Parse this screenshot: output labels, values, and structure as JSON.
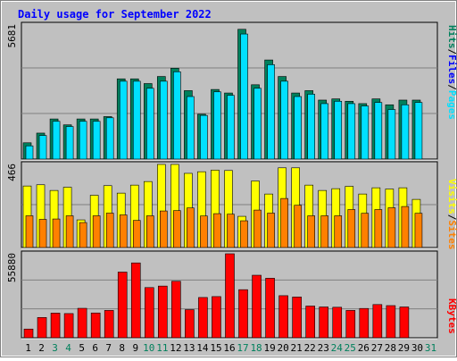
{
  "chart_data": [
    {
      "type": "bar",
      "panel": "hits-files-pages",
      "title": "Daily usage for September 2022",
      "ymax_label": "5681",
      "ylim": [
        0,
        5681
      ],
      "categories": [
        "1",
        "2",
        "3",
        "4",
        "5",
        "6",
        "7",
        "8",
        "9",
        "10",
        "11",
        "12",
        "13",
        "14",
        "15",
        "16",
        "17",
        "18",
        "19",
        "20",
        "21",
        "22",
        "23",
        "24",
        "25",
        "26",
        "27",
        "28",
        "29",
        "30",
        "31"
      ],
      "weekend_days": [
        "3",
        "4",
        "10",
        "11",
        "17",
        "18",
        "24",
        "25",
        "31"
      ],
      "grid": true,
      "legend": "right side, vertical",
      "series": [
        {
          "name": "Hits",
          "color": "#00805c",
          "values": [
            690,
            1100,
            1700,
            1450,
            1700,
            1700,
            1800,
            3400,
            3400,
            3200,
            3500,
            3850,
            2900,
            1900,
            2950,
            2800,
            5500,
            3150,
            4200,
            3500,
            2800,
            2900,
            2500,
            2550,
            2450,
            2350,
            2550,
            2300,
            2500,
            2500,
            0
          ]
        },
        {
          "name": "Files",
          "color": "#0000ff",
          "values": [
            0,
            0,
            0,
            0,
            0,
            0,
            0,
            0,
            0,
            0,
            0,
            0,
            0,
            0,
            0,
            0,
            0,
            0,
            0,
            0,
            0,
            0,
            0,
            0,
            0,
            0,
            0,
            0,
            0,
            0,
            0
          ]
        },
        {
          "name": "Pages",
          "color": "#00e0ff",
          "values": [
            560,
            1000,
            1600,
            1380,
            1600,
            1600,
            1750,
            3300,
            3300,
            3000,
            3300,
            3700,
            2650,
            1850,
            2850,
            2700,
            5300,
            3000,
            4000,
            3300,
            2650,
            2750,
            2350,
            2450,
            2350,
            2250,
            2400,
            2100,
            2300,
            2400,
            0
          ]
        }
      ]
    },
    {
      "type": "bar",
      "panel": "visits-sites",
      "ymax_label": "466",
      "ylim": [
        0,
        466
      ],
      "series": [
        {
          "name": "Visits",
          "color": "#ffff00",
          "values": [
            345,
            352,
            320,
            338,
            155,
            293,
            347,
            305,
            350,
            370,
            466,
            466,
            416,
            425,
            434,
            432,
            175,
            373,
            300,
            447,
            447,
            350,
            320,
            330,
            343,
            300,
            335,
            328,
            335,
            270,
            0
          ]
        },
        {
          "name": "Sites",
          "color": "#ff8000",
          "values": [
            178,
            158,
            160,
            178,
            140,
            178,
            193,
            183,
            152,
            178,
            205,
            207,
            222,
            177,
            190,
            187,
            150,
            210,
            193,
            275,
            237,
            178,
            178,
            178,
            213,
            192,
            213,
            223,
            230,
            192,
            0
          ]
        }
      ]
    },
    {
      "type": "bar",
      "panel": "kbytes",
      "ymax_label": "55880",
      "ylim": [
        0,
        55880
      ],
      "series": [
        {
          "name": "KBytes",
          "color": "#ff0000",
          "values": [
            5800,
            13500,
            16400,
            16100,
            19600,
            16500,
            18200,
            43700,
            49800,
            33400,
            34400,
            37600,
            18700,
            26800,
            27400,
            55880,
            32000,
            41600,
            39600,
            28000,
            27100,
            21100,
            20500,
            20300,
            18200,
            19500,
            22100,
            21400,
            20500,
            0,
            0
          ]
        }
      ]
    }
  ],
  "legends": {
    "panel1": {
      "hits": "Hits",
      "files": "Files",
      "pages": "Pages",
      "sep": "/"
    },
    "panel2": {
      "visits": "Visits",
      "sites": "Sites",
      "sep": "/"
    },
    "panel3": {
      "kbytes": "KBytes"
    }
  },
  "colors": {
    "title": "#0000ff",
    "panel_bg": "#c0c0c0",
    "frame_bg": "#c0c0c0",
    "weekday_label": "#000000",
    "weekend_label": "#00805c"
  }
}
